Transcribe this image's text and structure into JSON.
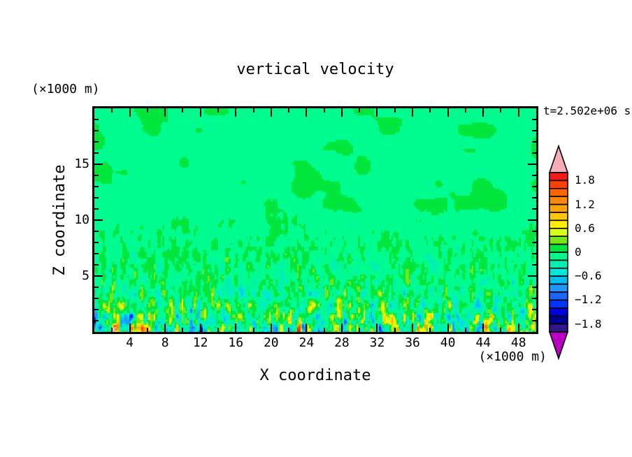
{
  "title": "vertical velocity",
  "labels": {
    "time": "t=2.502e+06 s",
    "z_units": "(×1000 m)",
    "x_units": "(×1000 m)"
  },
  "x_axis": {
    "label": "X coordinate",
    "min": 0,
    "max": 50,
    "major_tick_step": 4,
    "minor_tick_step": 2,
    "ticks": [
      {
        "v": 4,
        "label": "4"
      },
      {
        "v": 8,
        "label": "8"
      },
      {
        "v": 12,
        "label": "12"
      },
      {
        "v": 16,
        "label": "16"
      },
      {
        "v": 20,
        "label": "20"
      },
      {
        "v": 24,
        "label": "24"
      },
      {
        "v": 28,
        "label": "28"
      },
      {
        "v": 32,
        "label": "32"
      },
      {
        "v": 36,
        "label": "36"
      },
      {
        "v": 40,
        "label": "40"
      },
      {
        "v": 44,
        "label": "44"
      },
      {
        "v": 48,
        "label": "48"
      }
    ]
  },
  "z_axis": {
    "label": "Z coordinate",
    "min": 0,
    "max": 20,
    "major_tick_step": 5,
    "minor_tick_step": 1,
    "ticks": [
      {
        "v": 5,
        "label": "5"
      },
      {
        "v": 10,
        "label": "10"
      },
      {
        "v": 15,
        "label": "15"
      }
    ]
  },
  "colorbar": {
    "value_min": -2.0,
    "value_max": 2.0,
    "interval": 0.2,
    "outline_color": "#000000",
    "over_arrow_color": "#F6AEB6",
    "under_arrow_color": "#BA00C0",
    "segment_colors_top_to_bottom": [
      "#F61A1A",
      "#FF4000",
      "#FF6400",
      "#FF870A",
      "#FFA500",
      "#FFC800",
      "#FFF000",
      "#D7FF14",
      "#78E614",
      "#00E63C",
      "#00FC8E",
      "#00F0B4",
      "#00E6DC",
      "#00BEF0",
      "#1E96FF",
      "#1E64FF",
      "#0032FF",
      "#0000DC",
      "#000096",
      "#32148C"
    ],
    "labels": [
      {
        "text": "1.8",
        "value": 1.8
      },
      {
        "text": "1.2",
        "value": 1.2
      },
      {
        "text": "0.6",
        "value": 0.6
      },
      {
        "text": "0",
        "value": 0
      },
      {
        "text": "−0.6",
        "value": -0.6
      },
      {
        "text": "−1.2",
        "value": -1.2
      },
      {
        "text": "−1.8",
        "value": -1.8
      }
    ]
  },
  "chart_data": {
    "type": "heatmap",
    "title": "vertical velocity",
    "xlabel": "X coordinate",
    "ylabel": "Z coordinate",
    "x_units": "×1000 m",
    "z_units": "×1000 m",
    "time_annotation": "t=2.502e+06 s",
    "x_range": [
      0,
      50
    ],
    "z_range": [
      0,
      20
    ],
    "value_range": [
      -2.0,
      2.0
    ],
    "contour_interval": 0.2,
    "legend_position": "right-colorbar",
    "grid": false,
    "field_summary": "Filled-contour vertical velocity cross-section: nearly uniform weak field aloft (values between -0.2 and 0.2, two green tones with large patchy blobs between Z≈8 and 16), fine-grained speckle below Z≈8, and intense narrow turbulent updrafts/downdrafts near the surface (Z<3) reaching ±2 with yellow/orange/red positive plumes and cyan/blue/navy negative plumes",
    "render": {
      "nx": 253,
      "nz": 128,
      "seed_coarse_a": 11,
      "seed_coarse_b": 23,
      "seed_fine_a": 31,
      "seed_fine_b": 47,
      "amp_base": 0.165,
      "amp_surface": 1.35,
      "amp_decay": 8.0,
      "bias": -0.05,
      "cube_gain": 0.8,
      "blend_lo": 0.32,
      "blend_hi": 0.62,
      "upper_clamp_zn": 0.55,
      "upper_clamp_val": 0.199,
      "hard_clamp": 2.25,
      "top_damp_start": 0.75,
      "top_damp": 0.12
    }
  }
}
